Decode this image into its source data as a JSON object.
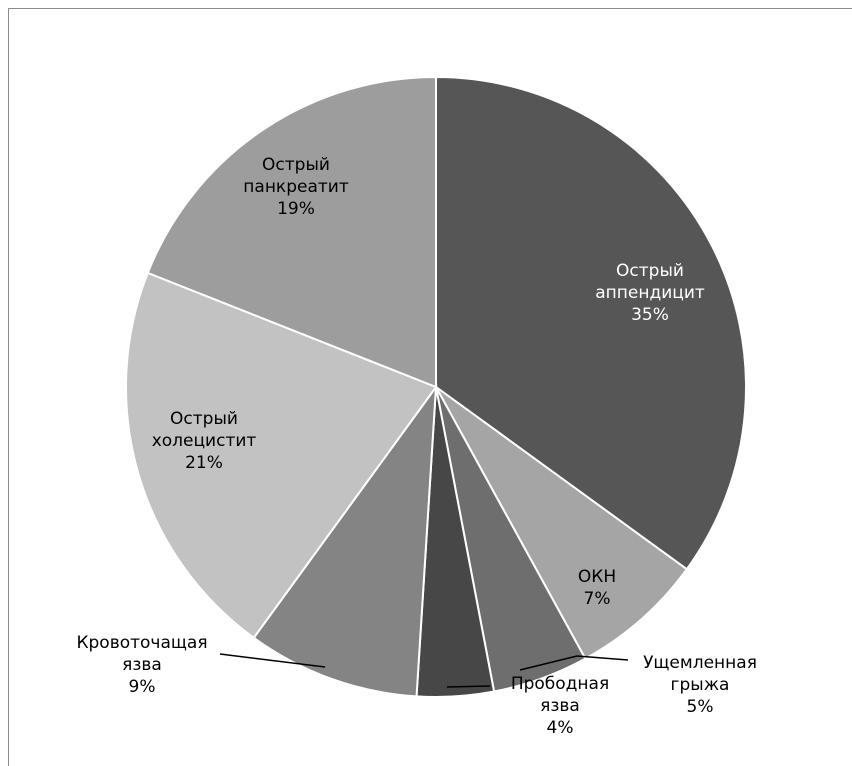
{
  "chart_data": {
    "type": "pie",
    "title": "",
    "start_angle_deg": 0,
    "direction": "clockwise",
    "slices": [
      {
        "label_lines": [
          "Острый",
          "аппендицит"
        ],
        "value": 35,
        "value_text": "35%",
        "color": "#565656",
        "label_color": "#ffffff",
        "label_pos": "inside"
      },
      {
        "label_lines": [
          "ОКН"
        ],
        "value": 7,
        "value_text": "7%",
        "color": "#a5a5a5",
        "label_color": "#000000",
        "label_pos": "inside"
      },
      {
        "label_lines": [
          "Ущемленная",
          "грыжа"
        ],
        "value": 5,
        "value_text": "5%",
        "color": "#6e6e6e",
        "label_color": "#000000",
        "label_pos": "outside"
      },
      {
        "label_lines": [
          "Прободная",
          "язва"
        ],
        "value": 4,
        "value_text": "4%",
        "color": "#474747",
        "label_color": "#000000",
        "label_pos": "outside"
      },
      {
        "label_lines": [
          "Кровоточащая",
          "язва"
        ],
        "value": 9,
        "value_text": "9%",
        "color": "#848484",
        "label_color": "#000000",
        "label_pos": "outside"
      },
      {
        "label_lines": [
          "Острый",
          "холецистит"
        ],
        "value": 21,
        "value_text": "21%",
        "color": "#c2c2c2",
        "label_color": "#000000",
        "label_pos": "inside"
      },
      {
        "label_lines": [
          "Острый",
          "панкреатит"
        ],
        "value": 19,
        "value_text": "19%",
        "color": "#9d9d9d",
        "label_color": "#000000",
        "label_pos": "inside"
      }
    ]
  }
}
